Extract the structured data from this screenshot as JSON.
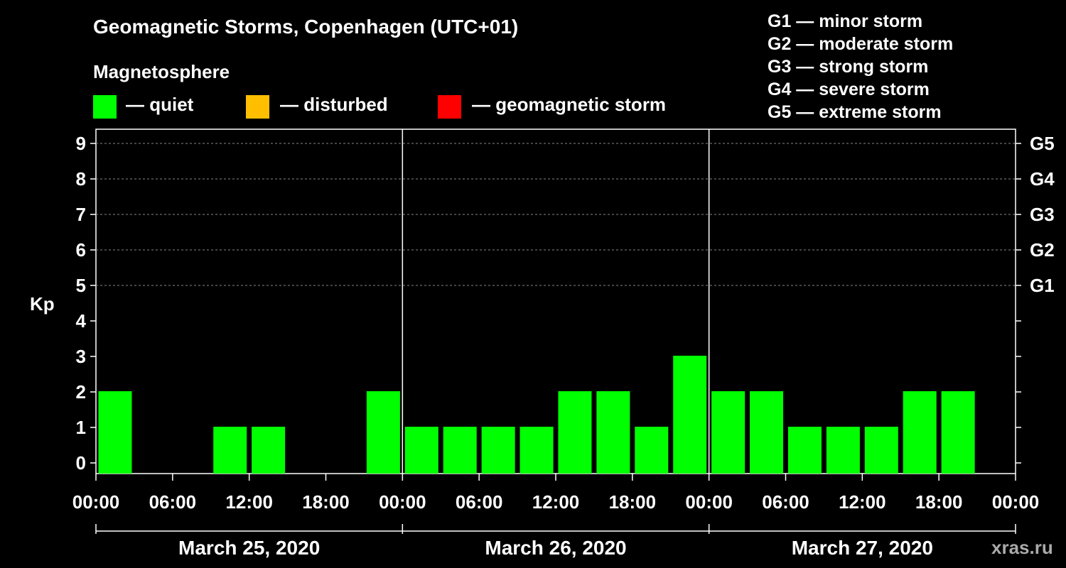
{
  "header": {
    "title": "Geomagnetic Storms, Copenhagen (UTC+01)",
    "subtitle": "Magnetosphere"
  },
  "legend": [
    {
      "label": "— quiet",
      "color": "#00ff00"
    },
    {
      "label": "— disturbed",
      "color": "#ffbf00"
    },
    {
      "label": "— geomagnetic storm",
      "color": "#ff0000"
    }
  ],
  "storm_scale": [
    "G1 — minor storm",
    "G2 — moderate storm",
    "G3 — strong storm",
    "G4 — severe storm",
    "G5 — extreme storm"
  ],
  "watermark": "xras.ru",
  "chart_data": {
    "type": "bar",
    "title": "Geomagnetic Storms, Copenhagen (UTC+01)",
    "ylabel": "Kp",
    "ylim": [
      0,
      9
    ],
    "y_ticks": [
      "0",
      "1",
      "2",
      "3",
      "4",
      "5",
      "6",
      "7",
      "8",
      "9"
    ],
    "right_axis_labels": [
      {
        "kp": 5,
        "label": "G1"
      },
      {
        "kp": 6,
        "label": "G2"
      },
      {
        "kp": 7,
        "label": "G3"
      },
      {
        "kp": 8,
        "label": "G4"
      },
      {
        "kp": 9,
        "label": "G5"
      }
    ],
    "x_tick_labels": [
      "00:00",
      "06:00",
      "12:00",
      "18:00",
      "00:00",
      "06:00",
      "12:00",
      "18:00",
      "00:00",
      "06:00",
      "12:00",
      "18:00",
      "00:00"
    ],
    "days": [
      "March 25, 2020",
      "March 26, 2020",
      "March 27, 2020"
    ],
    "interval_hours": 3,
    "values": [
      2,
      0,
      0,
      1,
      1,
      0,
      0,
      2,
      1,
      1,
      1,
      1,
      2,
      2,
      1,
      3,
      2,
      2,
      1,
      1,
      1,
      2,
      2,
      0
    ],
    "bar_color": "#00ff00",
    "grid": true
  }
}
